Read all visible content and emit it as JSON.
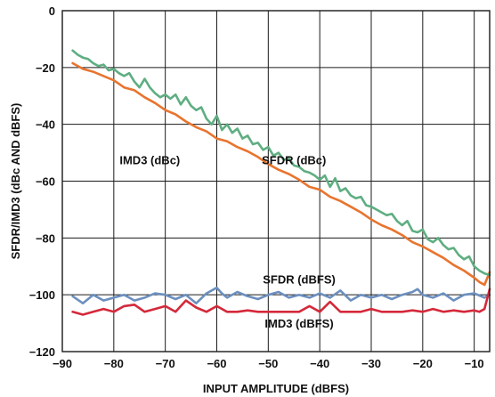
{
  "chart_data": {
    "type": "line",
    "xlabel": "INPUT AMPLITUDE (dBFS)",
    "ylabel": "SFDR/IMD3 (dBc AND dBFS)",
    "xlim": [
      -90,
      -7
    ],
    "ylim": [
      -120,
      0
    ],
    "xticks": [
      -90,
      -80,
      -70,
      -60,
      -50,
      -40,
      -30,
      -20,
      -10
    ],
    "yticks": [
      0,
      -20,
      -40,
      -60,
      -80,
      -100,
      -120
    ],
    "grid": true,
    "series": [
      {
        "name": "IMD3 (dBc)",
        "color": "#e8742f",
        "label_at": {
          "x": -73,
          "y": -54
        },
        "x": [
          -88,
          -86,
          -84,
          -82,
          -80,
          -78,
          -76,
          -74,
          -72,
          -70,
          -68,
          -66,
          -64,
          -62,
          -60,
          -58,
          -56,
          -54,
          -52,
          -50,
          -48,
          -46,
          -44,
          -42,
          -40,
          -38,
          -36,
          -34,
          -32,
          -30,
          -28,
          -26,
          -24,
          -22,
          -20,
          -18,
          -16,
          -14,
          -12,
          -10,
          -9,
          -8,
          -7
        ],
        "y": [
          -18.5,
          -20.5,
          -21.5,
          -23,
          -24.5,
          -27,
          -28,
          -30.5,
          -32.5,
          -35,
          -36.5,
          -39,
          -41,
          -42.5,
          -45,
          -46,
          -48,
          -49.5,
          -51.5,
          -54,
          -56,
          -57.5,
          -59.5,
          -62,
          -63,
          -65.5,
          -67,
          -69,
          -71,
          -73.5,
          -75.5,
          -77,
          -79,
          -81.5,
          -83,
          -85,
          -87,
          -89.5,
          -91.5,
          -94,
          -95.5,
          -96.5,
          -92
        ]
      },
      {
        "name": "SFDR (dBc)",
        "color": "#5fae82",
        "label_at": {
          "x": -45,
          "y": -54
        },
        "x": [
          -88,
          -87,
          -86,
          -85,
          -84,
          -83,
          -82,
          -81,
          -80,
          -79,
          -78,
          -77,
          -76,
          -75,
          -74,
          -73,
          -72,
          -71,
          -70,
          -69,
          -68,
          -67,
          -66,
          -65,
          -64,
          -63,
          -62,
          -61,
          -60,
          -59,
          -58,
          -57,
          -56,
          -55,
          -54,
          -53,
          -52,
          -51,
          -50,
          -49,
          -48,
          -47,
          -46,
          -45,
          -44,
          -43,
          -42,
          -41,
          -40,
          -39,
          -38,
          -37,
          -36,
          -35,
          -34,
          -33,
          -32,
          -31,
          -30,
          -29,
          -28,
          -27,
          -26,
          -25,
          -24,
          -23,
          -22,
          -21,
          -20,
          -19,
          -18,
          -17,
          -16,
          -15,
          -14,
          -13,
          -12,
          -11,
          -10,
          -9,
          -8,
          -7
        ],
        "y": [
          -14,
          -15.5,
          -16.5,
          -17,
          -18.5,
          -19.5,
          -19,
          -21,
          -20.5,
          -22,
          -23,
          -22,
          -25,
          -27,
          -24,
          -27,
          -29,
          -30.5,
          -29.5,
          -31,
          -29.5,
          -33,
          -30.5,
          -33.5,
          -35,
          -34,
          -38,
          -40,
          -37,
          -42,
          -40,
          -43,
          -41.5,
          -45,
          -44,
          -47,
          -46.5,
          -49,
          -48,
          -51,
          -50,
          -52.5,
          -52,
          -54.5,
          -55,
          -56.5,
          -57,
          -58,
          -59.5,
          -58,
          -62,
          -59,
          -63.5,
          -62.5,
          -65,
          -66,
          -65.5,
          -68.5,
          -69,
          -70,
          -71,
          -72,
          -71.5,
          -74,
          -75.5,
          -74,
          -77.5,
          -78,
          -77,
          -80.5,
          -81.5,
          -80,
          -82.5,
          -84,
          -83.5,
          -86,
          -87.5,
          -86.5,
          -90,
          -91.5,
          -92.5,
          -93
        ]
      },
      {
        "name": "SFDR (dBFS)",
        "color": "#6c8fbf",
        "label_at": {
          "x": -44,
          "y": -96
        },
        "x": [
          -88,
          -86,
          -84,
          -82,
          -80,
          -78,
          -76,
          -74,
          -72,
          -70,
          -68,
          -66,
          -64,
          -62,
          -60,
          -59,
          -58,
          -56,
          -54,
          -52,
          -50,
          -48,
          -46,
          -44,
          -42,
          -40,
          -38,
          -36,
          -34,
          -32,
          -30,
          -28,
          -26,
          -24,
          -22,
          -21,
          -20,
          -18,
          -16,
          -14,
          -12,
          -10,
          -8,
          -7
        ],
        "y": [
          -100.5,
          -103,
          -100,
          -102,
          -101,
          -100,
          -102,
          -101,
          -99.5,
          -100,
          -101.5,
          -100,
          -103,
          -99.5,
          -97.5,
          -99.5,
          -101,
          -99,
          -100.5,
          -101.5,
          -100,
          -99,
          -101,
          -100,
          -101,
          -99.5,
          -101,
          -98.5,
          -102,
          -100,
          -101,
          -100,
          -101.5,
          -100,
          -99,
          -98,
          -100,
          -101,
          -99.5,
          -102,
          -100,
          -99.5,
          -101,
          -100
        ]
      },
      {
        "name": "IMD3 (dBFS)",
        "color": "#d4293a",
        "label_at": {
          "x": -44,
          "y": -111.5
        },
        "x": [
          -88,
          -86,
          -84,
          -82,
          -80,
          -78,
          -76,
          -74,
          -72,
          -70,
          -68,
          -66,
          -64,
          -62,
          -60,
          -58,
          -56,
          -54,
          -52,
          -50,
          -48,
          -46,
          -44,
          -42,
          -40,
          -38,
          -36,
          -34,
          -32,
          -30,
          -28,
          -26,
          -24,
          -22,
          -20,
          -18,
          -16,
          -14,
          -12,
          -10,
          -9,
          -8,
          -7
        ],
        "y": [
          -106,
          -107,
          -106,
          -105,
          -106,
          -104,
          -103.5,
          -106,
          -105,
          -104,
          -106,
          -102,
          -104.5,
          -106,
          -104,
          -106,
          -106,
          -105.5,
          -106,
          -106,
          -106,
          -106,
          -106,
          -104,
          -106,
          -102.5,
          -106,
          -106,
          -106,
          -105,
          -106,
          -106,
          -106,
          -105.5,
          -106,
          -105,
          -106,
          -105.5,
          -106,
          -105.5,
          -106,
          -105,
          -98
        ]
      }
    ]
  }
}
